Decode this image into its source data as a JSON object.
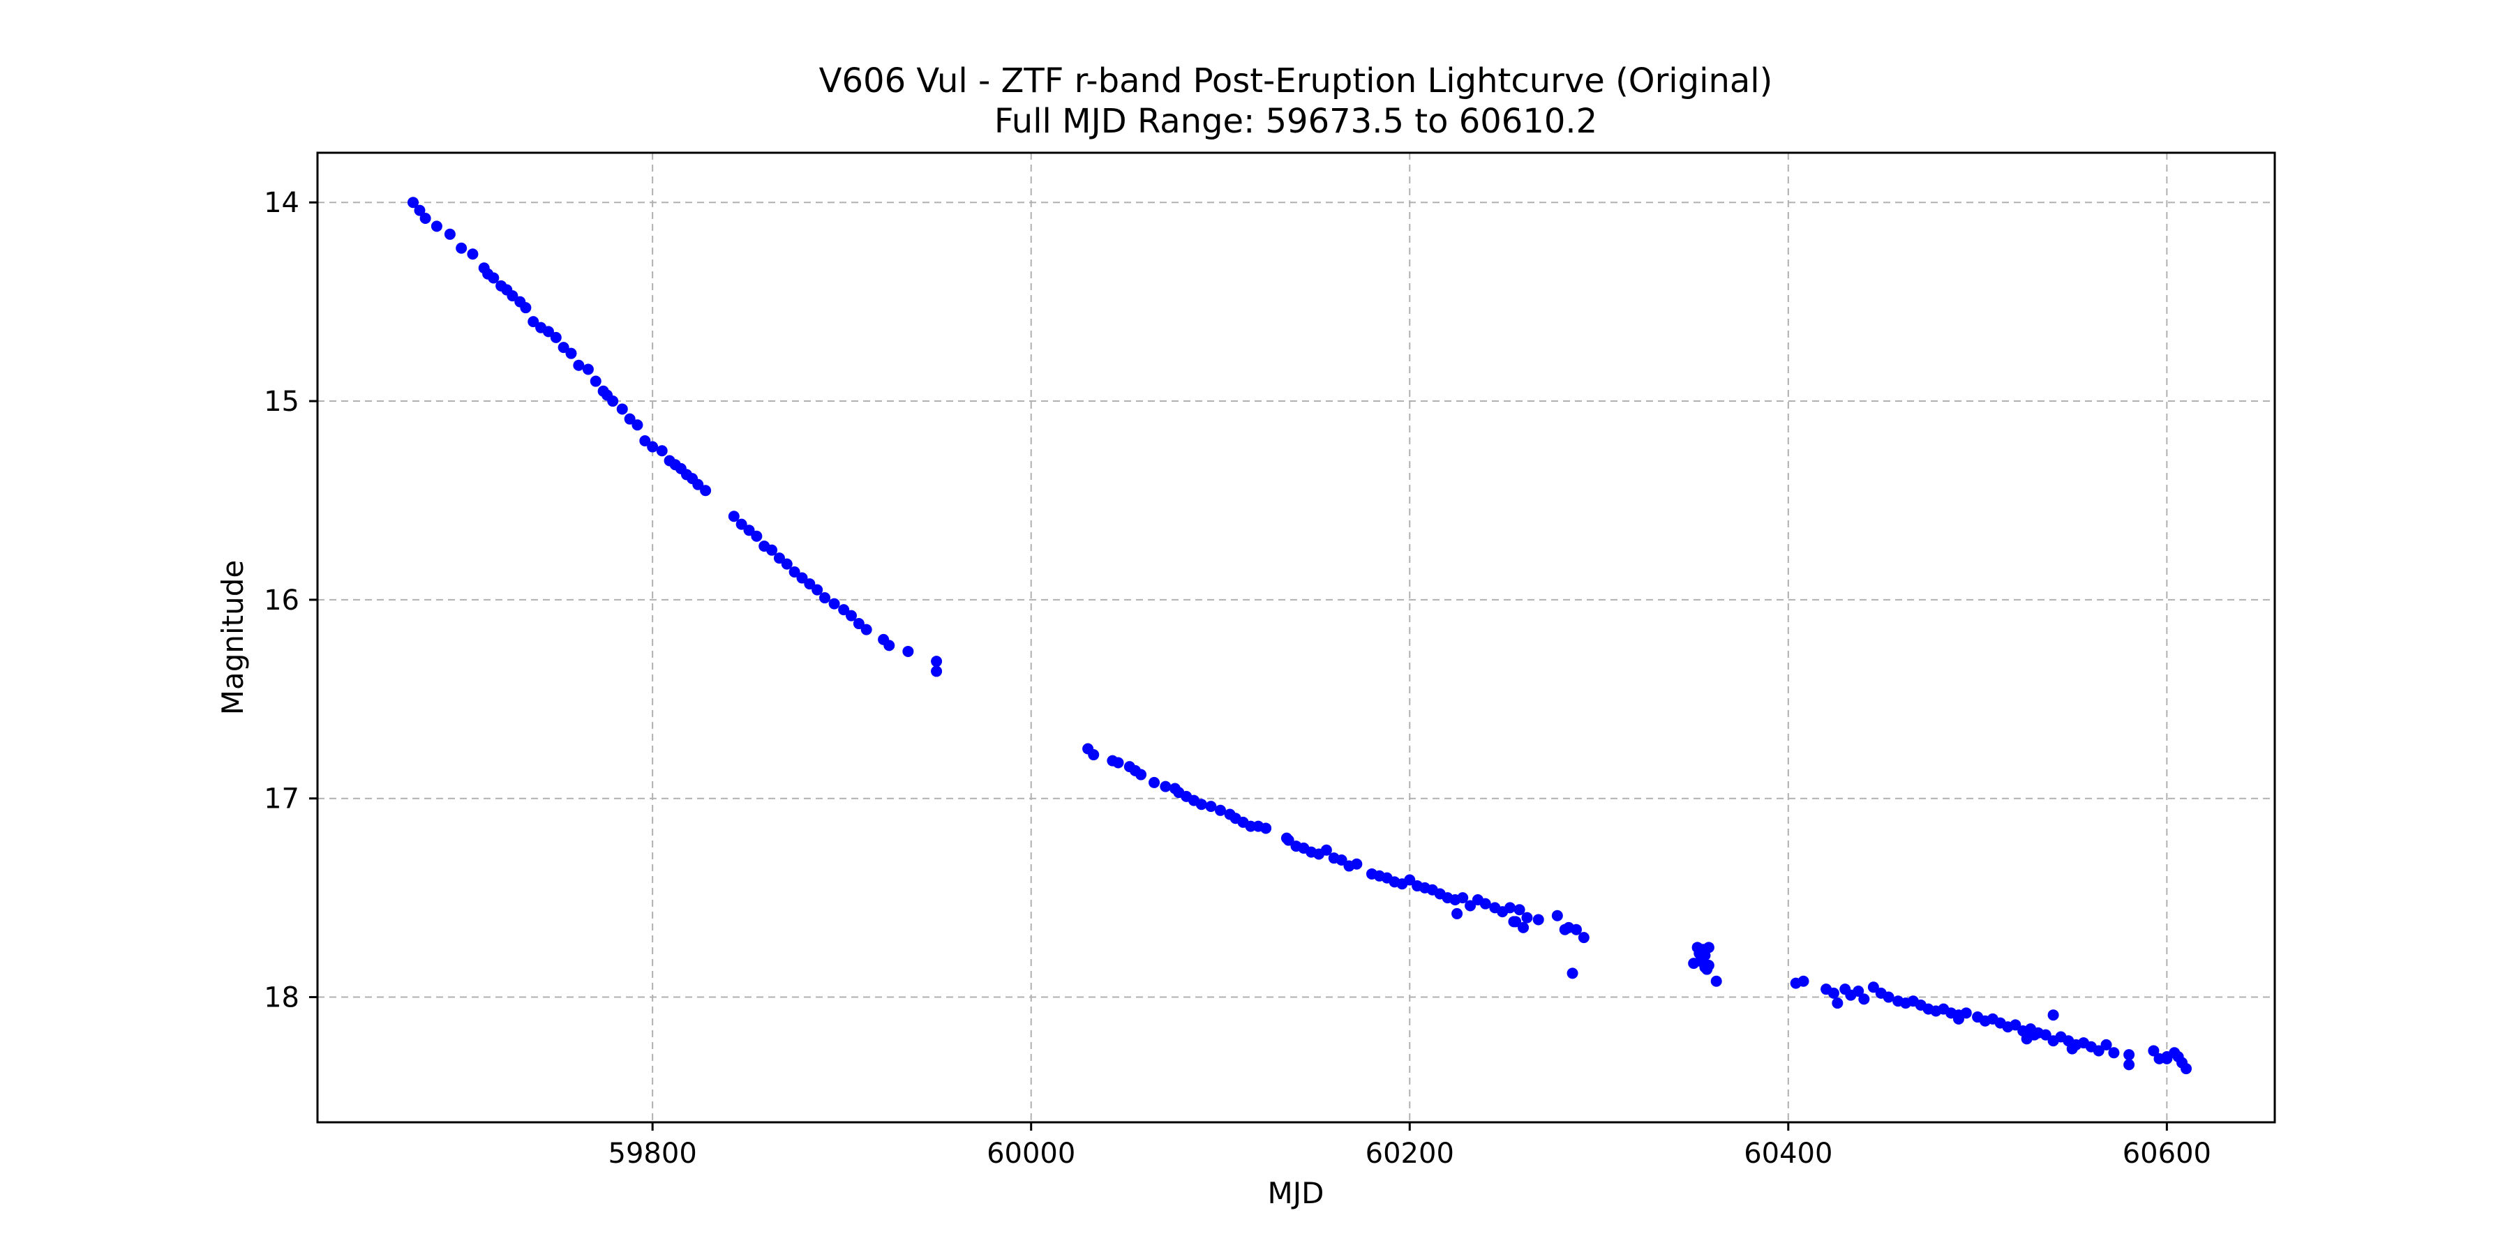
{
  "chart_data": {
    "type": "scatter",
    "title": "V606 Vul - ZTF r-band Post-Eruption Lightcurve (Original)",
    "subtitle": "Full MJD Range: 59673.5 to 60610.2",
    "xlabel": "MJD",
    "ylabel": "Magnitude",
    "xlim": [
      59623,
      60657
    ],
    "ylim": [
      18.63,
      13.75
    ],
    "y_inverted": true,
    "grid": true,
    "marker_color": "#0000ff",
    "xticks": [
      59800,
      60000,
      60200,
      60400,
      60600
    ],
    "yticks": [
      14,
      15,
      16,
      17,
      18
    ],
    "series": [
      {
        "x": [
          59673.5,
          59677,
          59680,
          59686,
          59693,
          59699,
          59705,
          59711,
          59713,
          59716,
          59720,
          59723,
          59726,
          59730,
          59733,
          59737,
          59741,
          59745,
          59749,
          59753,
          59757,
          59761,
          59766,
          59770,
          59774,
          59776,
          59779,
          59784,
          59788,
          59792,
          59796,
          59800,
          59805,
          59809,
          59812,
          59815,
          59818,
          59821,
          59824,
          59828,
          59843,
          59847,
          59851,
          59855,
          59859,
          59863,
          59867,
          59871,
          59875,
          59879,
          59883,
          59887,
          59891,
          59896,
          59901,
          59905,
          59909,
          59913,
          59922,
          59925,
          59935,
          59950,
          59950,
          60030,
          60033,
          60043,
          60046,
          60052,
          60055,
          60058,
          60065,
          60071,
          60076,
          60078,
          60082,
          60086,
          60090,
          60095,
          60100,
          60105,
          60108,
          60112,
          60116,
          60120,
          60124,
          60136,
          60140,
          60144,
          60148,
          60152,
          60156,
          60160,
          60164,
          60168,
          60172,
          60180,
          60184,
          60188,
          60192,
          60196,
          60200,
          60204,
          60208,
          60212,
          60216,
          60220,
          60224,
          60228,
          60232,
          60236,
          60240,
          60245,
          60249,
          60253,
          60255,
          60258,
          60262,
          60268,
          60284,
          60288,
          60292,
          60352,
          60353,
          60354,
          60354,
          60355,
          60356,
          60356,
          60357,
          60358,
          60404,
          60408,
          60424,
          60430,
          60433,
          60437,
          60445,
          60449,
          60453,
          60458,
          60462,
          60466,
          60470,
          60474,
          60478,
          60482,
          60486,
          60490,
          60494,
          60500,
          60504,
          60508,
          60512,
          60516,
          60520,
          60524,
          60528,
          60532,
          60536,
          60540,
          60544,
          60548,
          60552,
          60556,
          60560,
          60564,
          60568,
          60572,
          60580,
          60593,
          60596,
          60600,
          60604,
          60608,
          60610.2
        ],
        "y": [
          14.0,
          14.04,
          14.08,
          14.12,
          14.16,
          14.23,
          14.26,
          14.33,
          14.36,
          14.38,
          14.42,
          14.44,
          14.47,
          14.5,
          14.53,
          14.6,
          14.63,
          14.65,
          14.68,
          14.73,
          14.76,
          14.82,
          14.84,
          14.9,
          14.95,
          14.97,
          15.0,
          15.04,
          15.09,
          15.12,
          15.2,
          15.23,
          15.25,
          15.3,
          15.32,
          15.34,
          15.37,
          15.39,
          15.42,
          15.45,
          15.58,
          15.62,
          15.65,
          15.68,
          15.73,
          15.75,
          15.79,
          15.82,
          15.86,
          15.89,
          15.92,
          15.95,
          15.99,
          16.02,
          16.05,
          16.08,
          16.12,
          16.15,
          16.2,
          16.23,
          16.26,
          16.31,
          16.36,
          16.75,
          16.78,
          16.81,
          16.82,
          16.84,
          16.86,
          16.88,
          16.92,
          16.94,
          16.95,
          16.97,
          16.99,
          17.01,
          17.03,
          17.04,
          17.06,
          17.08,
          17.1,
          17.12,
          17.14,
          17.14,
          17.15,
          17.21,
          17.24,
          17.25,
          17.27,
          17.28,
          17.26,
          17.3,
          17.31,
          17.34,
          17.33,
          17.38,
          17.39,
          17.4,
          17.42,
          17.43,
          17.41,
          17.44,
          17.45,
          17.46,
          17.48,
          17.5,
          17.51,
          17.5,
          17.54,
          17.51,
          17.53,
          17.55,
          17.57,
          17.55,
          17.62,
          17.56,
          17.6,
          17.61,
          17.65,
          17.66,
          17.7,
          17.75,
          17.78,
          17.8,
          17.82,
          17.76,
          17.85,
          17.79,
          17.86,
          17.84,
          17.93,
          17.92,
          17.98,
          17.96,
          17.99,
          17.97,
          17.95,
          17.98,
          18.0,
          18.02,
          18.03,
          18.02,
          18.04,
          18.06,
          18.07,
          18.06,
          18.08,
          18.09,
          18.08,
          18.1,
          18.12,
          18.11,
          18.13,
          18.15,
          18.14,
          18.17,
          18.16,
          18.18,
          18.19,
          18.09,
          18.2,
          18.22,
          18.24,
          18.23,
          18.25,
          18.27,
          18.24,
          18.28,
          18.29,
          18.27,
          18.31,
          18.3,
          18.28,
          18.33,
          18.36
        ]
      }
    ],
    "extra_points": {
      "x": [
        60135,
        60225,
        60256,
        60260,
        60278,
        60282,
        60286,
        60350,
        60358,
        60362,
        60420,
        60426,
        60440,
        60490,
        60526,
        60530,
        60540,
        60550,
        60580,
        60600,
        60606
      ],
      "y": [
        17.2,
        17.58,
        17.62,
        17.65,
        17.59,
        17.66,
        17.88,
        17.83,
        17.75,
        17.92,
        17.96,
        18.03,
        18.01,
        18.11,
        18.21,
        18.19,
        18.22,
        18.26,
        18.34,
        18.31,
        18.3
      ]
    }
  }
}
